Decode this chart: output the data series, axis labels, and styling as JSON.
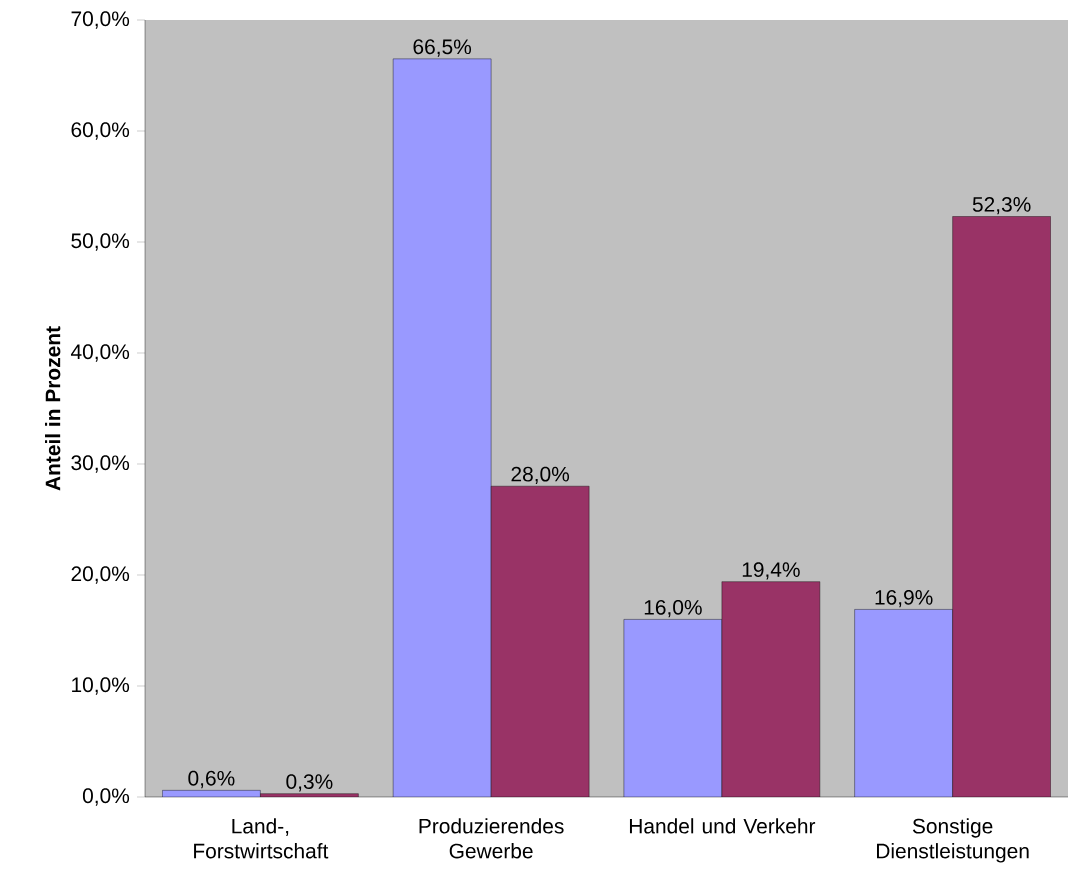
{
  "chart_data": {
    "type": "bar",
    "ylabel": "Anteil in Prozent",
    "categories": [
      "Land-, Forstwirtschaft",
      "Produzierendes Gewerbe",
      "Handel und Verkehr",
      "Sonstige Dienstleistungen"
    ],
    "series": [
      {
        "color": "#9999ff",
        "values": [
          0.6,
          66.5,
          16.0,
          16.9
        ],
        "value_labels": [
          "0,6%",
          "66,5%",
          "16,0%",
          "16,9%"
        ]
      },
      {
        "color": "#993366",
        "values": [
          0.3,
          28.0,
          19.4,
          52.3
        ],
        "value_labels": [
          "0,3%",
          "28,0%",
          "19,4%",
          "52,3%"
        ]
      }
    ],
    "ylim": [
      0,
      70
    ],
    "yticks": [
      {
        "value": 0,
        "label": "0,0%"
      },
      {
        "value": 10,
        "label": "10,0%"
      },
      {
        "value": 20,
        "label": "20,0%"
      },
      {
        "value": 30,
        "label": "30,0%"
      },
      {
        "value": 40,
        "label": "40,0%"
      },
      {
        "value": 50,
        "label": "50,0%"
      },
      {
        "value": 60,
        "label": "60,0%"
      },
      {
        "value": 70,
        "label": "70,0%"
      }
    ],
    "grid": false
  }
}
